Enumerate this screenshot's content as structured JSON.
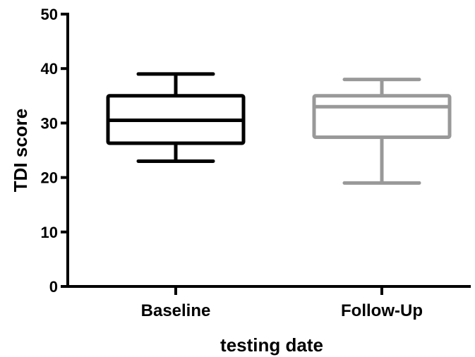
{
  "chart_data": {
    "type": "box",
    "title": "",
    "xlabel": "testing date",
    "ylabel": "TDI score",
    "ylim": [
      0,
      50
    ],
    "yticks": [
      0,
      10,
      20,
      30,
      40,
      50
    ],
    "grid": false,
    "categories": [
      "Baseline",
      "Follow-Up"
    ],
    "boxes": [
      {
        "category": "Baseline",
        "min": 23,
        "q1": 26.3,
        "median": 30.5,
        "q3": 35,
        "max": 39,
        "color": "#000000"
      },
      {
        "category": "Follow-Up",
        "min": 19,
        "q1": 27.4,
        "median": 33,
        "q3": 35,
        "max": 38,
        "color": "#999999"
      }
    ]
  }
}
